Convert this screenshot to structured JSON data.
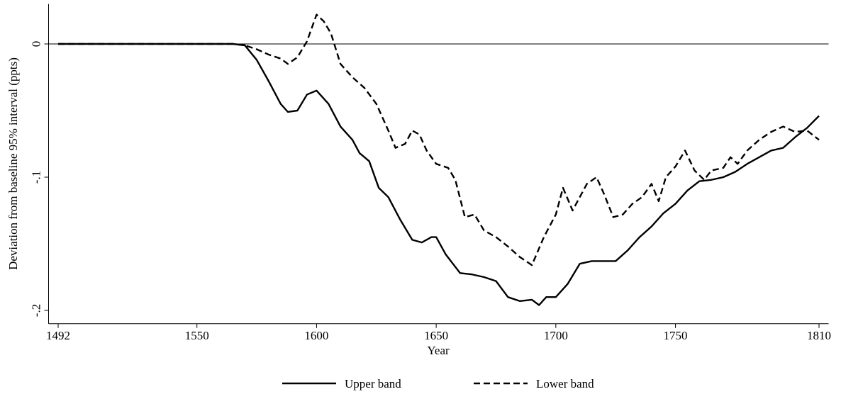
{
  "chart_data": {
    "type": "line",
    "xlabel": "Year",
    "ylabel": "Deviation from baseline 95% interval (ppts)",
    "xlim": [
      1488,
      1814
    ],
    "ylim": [
      -0.21,
      0.03
    ],
    "xticks": [
      1492,
      1550,
      1600,
      1650,
      1700,
      1750,
      1810
    ],
    "yticks": [
      {
        "value": 0,
        "label": "0"
      },
      {
        "value": -0.1,
        "label": "-.1"
      },
      {
        "value": -0.2,
        "label": "-.2"
      }
    ],
    "yline": 0,
    "legend": "bottom",
    "series": [
      {
        "name": "Upper band",
        "color": "#000000",
        "dash": false,
        "x": [
          1492,
          1500,
          1520,
          1540,
          1560,
          1565,
          1570,
          1575,
          1580,
          1585,
          1588,
          1592,
          1596,
          1600,
          1605,
          1610,
          1615,
          1618,
          1622,
          1626,
          1630,
          1635,
          1640,
          1644,
          1648,
          1650,
          1654,
          1660,
          1665,
          1670,
          1675,
          1680,
          1685,
          1690,
          1693,
          1696,
          1700,
          1705,
          1710,
          1715,
          1720,
          1725,
          1730,
          1735,
          1740,
          1745,
          1750,
          1755,
          1760,
          1765,
          1770,
          1775,
          1780,
          1785,
          1790,
          1795,
          1800,
          1805,
          1810
        ],
        "values": [
          0,
          0,
          0,
          0,
          0,
          0,
          -0.001,
          -0.012,
          -0.028,
          -0.045,
          -0.051,
          -0.05,
          -0.038,
          -0.035,
          -0.045,
          -0.062,
          -0.072,
          -0.082,
          -0.088,
          -0.108,
          -0.115,
          -0.132,
          -0.147,
          -0.149,
          -0.145,
          -0.145,
          -0.158,
          -0.172,
          -0.173,
          -0.175,
          -0.178,
          -0.19,
          -0.193,
          -0.192,
          -0.196,
          -0.19,
          -0.19,
          -0.18,
          -0.165,
          -0.163,
          -0.163,
          -0.163,
          -0.155,
          -0.145,
          -0.137,
          -0.127,
          -0.12,
          -0.11,
          -0.103,
          -0.102,
          -0.1,
          -0.096,
          -0.09,
          -0.085,
          -0.08,
          -0.078,
          -0.07,
          -0.063,
          -0.054
        ]
      },
      {
        "name": "Lower band",
        "color": "#000000",
        "dash": true,
        "x": [
          1492,
          1500,
          1520,
          1540,
          1560,
          1565,
          1570,
          1575,
          1580,
          1585,
          1588,
          1592,
          1596,
          1600,
          1603,
          1606,
          1610,
          1615,
          1620,
          1625,
          1630,
          1633,
          1637,
          1640,
          1643,
          1646,
          1650,
          1655,
          1658,
          1662,
          1666,
          1670,
          1675,
          1680,
          1685,
          1690,
          1695,
          1700,
          1703,
          1707,
          1710,
          1713,
          1717,
          1720,
          1724,
          1728,
          1732,
          1736,
          1740,
          1743,
          1746,
          1750,
          1754,
          1758,
          1762,
          1765,
          1770,
          1773,
          1776,
          1780,
          1785,
          1790,
          1795,
          1800,
          1805,
          1810
        ],
        "values": [
          0,
          0,
          0,
          0,
          0,
          0,
          -0.001,
          -0.004,
          -0.008,
          -0.011,
          -0.015,
          -0.01,
          0.002,
          0.022,
          0.017,
          0.008,
          -0.015,
          -0.025,
          -0.033,
          -0.045,
          -0.065,
          -0.078,
          -0.075,
          -0.065,
          -0.068,
          -0.08,
          -0.09,
          -0.093,
          -0.102,
          -0.13,
          -0.128,
          -0.14,
          -0.145,
          -0.152,
          -0.16,
          -0.166,
          -0.145,
          -0.128,
          -0.108,
          -0.125,
          -0.115,
          -0.105,
          -0.1,
          -0.112,
          -0.13,
          -0.128,
          -0.12,
          -0.115,
          -0.105,
          -0.118,
          -0.1,
          -0.092,
          -0.08,
          -0.095,
          -0.102,
          -0.095,
          -0.093,
          -0.085,
          -0.09,
          -0.08,
          -0.072,
          -0.066,
          -0.062,
          -0.066,
          -0.065,
          -0.072
        ]
      }
    ]
  }
}
